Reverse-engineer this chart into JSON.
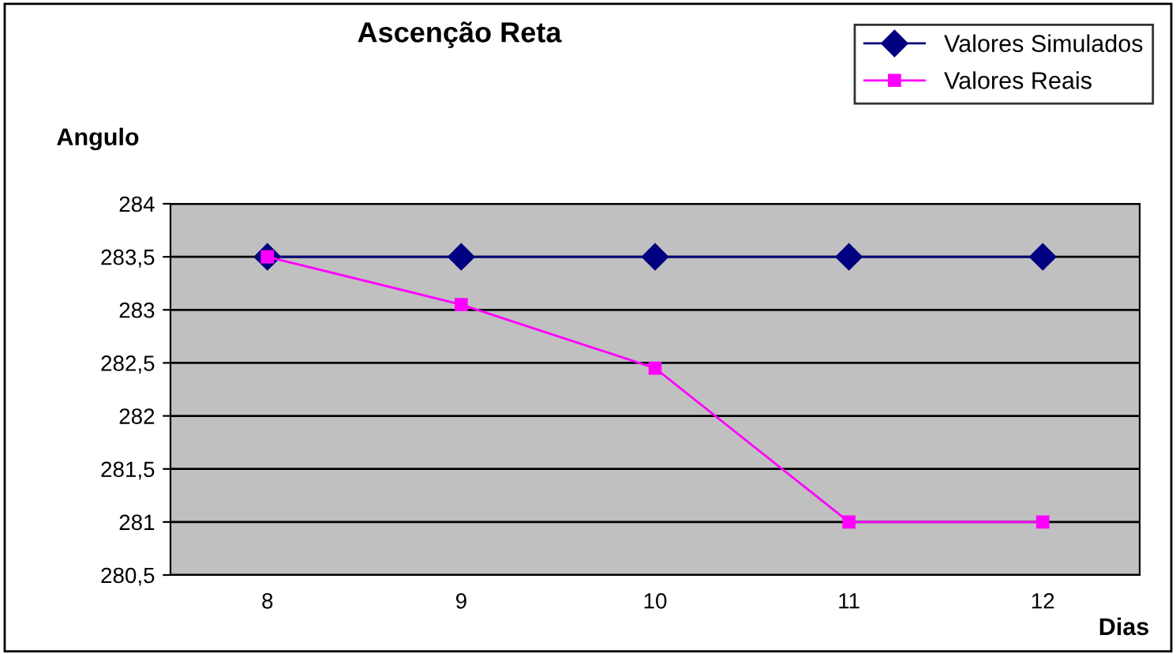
{
  "chart_data": {
    "type": "line",
    "title": "Ascenção Reta",
    "ylabel": "Angulo",
    "xlabel": "Dias",
    "categories": [
      "8",
      "9",
      "10",
      "11",
      "12"
    ],
    "series": [
      {
        "name": "Valores Simulados",
        "color": "#000080",
        "marker": "diamond",
        "values": [
          283.5,
          283.5,
          283.5,
          283.5,
          283.5
        ]
      },
      {
        "name": "Valores Reais",
        "color": "#ff00ff",
        "marker": "square",
        "values": [
          283.5,
          283.05,
          282.45,
          281.0,
          281.0
        ]
      }
    ],
    "ylim": [
      280.5,
      284
    ],
    "yticks": [
      {
        "value": 280.5,
        "label": "280,5"
      },
      281,
      {
        "value": 281.5,
        "label": "281,5"
      },
      282,
      {
        "value": 282.5,
        "label": "282,5"
      },
      283,
      {
        "value": 283.5,
        "label": "283,5"
      },
      284
    ],
    "grid": "y",
    "legend": "top right",
    "line_style": "solid"
  }
}
